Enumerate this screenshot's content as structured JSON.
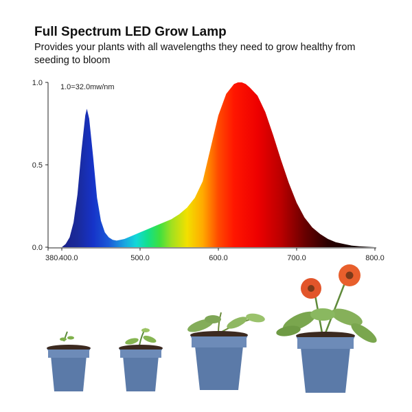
{
  "header": {
    "title": "Full Spectrum LED Grow Lamp",
    "subtitle": "Provides your plants with all wavelengths they need to grow healthy from seeding to bloom"
  },
  "chart_data": {
    "type": "area",
    "title": "Full Spectrum LED Grow Lamp",
    "xlabel": "",
    "ylabel": "",
    "annotation": "1.0=32.0mw/nm",
    "xlim": [
      380,
      800
    ],
    "ylim": [
      0,
      1.0
    ],
    "x_ticks": [
      380,
      400,
      500,
      600,
      700,
      800
    ],
    "x_tick_labels": [
      "380.",
      "400.0",
      "500.0",
      "600.0",
      "700.0",
      "800.0"
    ],
    "y_ticks": [
      0,
      0.5,
      1.0
    ],
    "y_tick_labels": [
      "0.0",
      "0.5",
      "1.0"
    ],
    "grid": false,
    "series": [
      {
        "x": [
          380,
          400,
          405,
          410,
          415,
          420,
          425,
          430,
          432,
          435,
          440,
          445,
          450,
          455,
          460,
          465,
          470,
          475,
          480,
          490,
          500,
          510,
          520,
          530,
          540,
          550,
          560,
          570,
          580,
          590,
          600,
          610,
          620,
          625,
          630,
          635,
          640,
          650,
          660,
          670,
          680,
          690,
          700,
          710,
          720,
          730,
          740,
          750,
          760,
          770,
          780,
          800
        ],
        "y": [
          0.0,
          0.0,
          0.02,
          0.06,
          0.15,
          0.32,
          0.58,
          0.8,
          0.84,
          0.78,
          0.55,
          0.3,
          0.16,
          0.09,
          0.06,
          0.045,
          0.04,
          0.045,
          0.05,
          0.07,
          0.09,
          0.11,
          0.13,
          0.15,
          0.17,
          0.2,
          0.24,
          0.3,
          0.4,
          0.6,
          0.8,
          0.93,
          0.99,
          1.0,
          1.0,
          0.99,
          0.97,
          0.92,
          0.82,
          0.68,
          0.53,
          0.39,
          0.27,
          0.18,
          0.12,
          0.08,
          0.05,
          0.03,
          0.02,
          0.01,
          0.005,
          0.0
        ]
      }
    ]
  },
  "pots": [
    {
      "name": "pot-seedling",
      "icon": "seedling-pot-icon",
      "color": "#5b7aa8"
    },
    {
      "name": "pot-sprout",
      "icon": "sprout-pot-icon",
      "color": "#5b7aa8"
    },
    {
      "name": "pot-young-plant",
      "icon": "young-plant-pot-icon",
      "color": "#5b7aa8"
    },
    {
      "name": "pot-flowering-plant",
      "icon": "flowering-plant-pot-icon",
      "color": "#5b7aa8"
    }
  ]
}
